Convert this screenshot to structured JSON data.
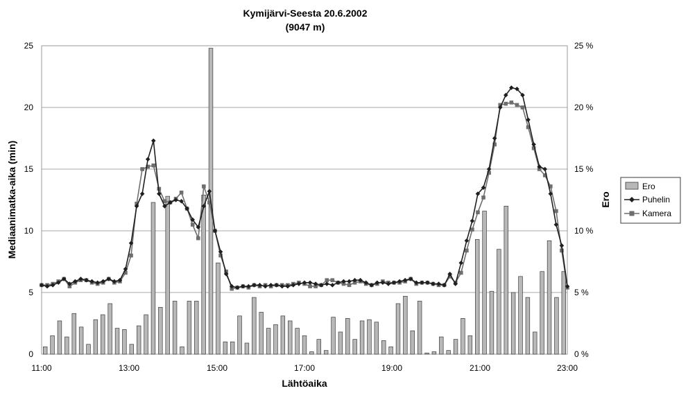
{
  "chart_data": {
    "type": "bar+line",
    "title": "Kymijärvi-Seesta 20.6.2002",
    "subtitle": "(9047 m)",
    "xlabel": "Lähtöaika",
    "ylabel": "Mediaanimatka-aika (min)",
    "y2label": "Ero",
    "x_ticks": [
      "11:00",
      "13:00",
      "15:00",
      "17:00",
      "19:00",
      "21:00",
      "23:00"
    ],
    "y_ticks": [
      "0",
      "5",
      "10",
      "15",
      "20",
      "25"
    ],
    "y2_ticks": [
      "0 %",
      "5 %",
      "10 %",
      "15 %",
      "20 %",
      "25 %"
    ],
    "xlim_hours": [
      11,
      23
    ],
    "ylim": [
      0,
      25
    ],
    "y2lim": [
      0,
      25
    ],
    "grid": "horizontal",
    "legend_position": "right",
    "colors": {
      "bar_fill": "#b8b8b8",
      "bar_stroke": "#3a3a3a",
      "puhelin": "#1f1f1f",
      "kamera": "#6e6e6e",
      "grid": "#8a8a8a"
    },
    "series": [
      {
        "name": "Ero",
        "kind": "bar",
        "axis": "right",
        "unit": "%",
        "values": [
          0.6,
          1.5,
          2.7,
          1.4,
          3.3,
          2.2,
          0.8,
          2.8,
          3.2,
          4.1,
          2.1,
          2.0,
          0.8,
          2.3,
          3.2,
          12.3,
          3.8,
          12.8,
          4.3,
          0.6,
          4.3,
          4.3,
          12.9,
          24.8,
          7.4,
          1.0,
          1.0,
          3.1,
          0.9,
          4.6,
          3.4,
          2.1,
          2.4,
          3.1,
          2.7,
          2.1,
          1.5,
          0.2,
          1.2,
          0.3,
          3.0,
          1.8,
          2.9,
          1.2,
          2.7,
          2.8,
          2.6,
          1.1,
          0.6,
          4.1,
          4.7,
          1.9,
          4.3,
          0.1,
          0.2,
          1.4,
          0.3,
          1.2,
          2.9,
          1.5,
          9.3,
          11.6,
          5.1,
          8.5,
          12.0,
          5.0,
          6.3,
          4.6,
          1.8,
          6.7,
          9.2,
          4.6,
          6.7
        ]
      },
      {
        "name": "Puhelin",
        "kind": "line",
        "marker": "diamond",
        "axis": "left",
        "values": [
          5.6,
          5.5,
          5.6,
          5.8,
          6.1,
          5.7,
          5.9,
          6.1,
          6.0,
          5.9,
          5.8,
          5.9,
          6.1,
          5.9,
          6.0,
          6.9,
          9.0,
          12.0,
          13.0,
          15.8,
          17.3,
          13.0,
          12.0,
          12.3,
          12.5,
          12.4,
          11.8,
          10.9,
          10.3,
          12.0,
          13.2,
          10.0,
          8.3,
          6.5,
          5.5,
          5.4,
          5.5,
          5.5,
          5.6,
          5.6,
          5.5,
          5.6,
          5.6,
          5.5,
          5.5,
          5.6,
          5.7,
          5.8,
          5.8,
          5.7,
          5.6,
          5.7,
          5.6,
          5.8,
          5.9,
          5.9,
          6.0,
          6.0,
          5.8,
          5.6,
          5.8,
          5.8,
          5.7,
          5.8,
          5.9,
          6.0,
          6.1,
          5.8,
          5.8,
          5.8,
          5.7,
          5.7,
          5.6,
          6.5,
          5.7,
          7.4,
          9.2,
          10.8,
          13.0,
          13.5,
          15.0,
          17.5,
          20.0,
          21.0,
          21.6,
          21.5,
          21.0,
          19.0,
          17.0,
          15.2,
          15.0,
          13.0,
          10.5,
          8.8,
          5.5
        ]
      },
      {
        "name": "Kamera",
        "kind": "line",
        "marker": "square",
        "axis": "left",
        "values": [
          5.6,
          5.6,
          5.7,
          5.9,
          6.1,
          5.5,
          5.8,
          6.0,
          6.0,
          5.8,
          5.7,
          5.8,
          6.1,
          5.8,
          5.9,
          6.6,
          8.0,
          12.2,
          15.0,
          15.2,
          15.3,
          13.4,
          12.4,
          12.3,
          12.6,
          13.1,
          11.8,
          10.5,
          9.4,
          13.6,
          12.3,
          10.0,
          8.0,
          6.7,
          5.3,
          5.4,
          5.5,
          5.4,
          5.6,
          5.5,
          5.6,
          5.5,
          5.6,
          5.6,
          5.6,
          5.7,
          5.8,
          5.7,
          5.5,
          5.5,
          5.6,
          6.0,
          6.0,
          5.8,
          5.7,
          5.6,
          5.8,
          5.9,
          5.7,
          5.6,
          5.7,
          5.9,
          5.8,
          5.8,
          5.8,
          5.9,
          6.1,
          5.7,
          5.8,
          5.8,
          5.7,
          5.6,
          5.6,
          6.3,
          5.8,
          6.6,
          8.4,
          10.1,
          11.5,
          12.7,
          14.7,
          17.0,
          20.2,
          20.3,
          20.4,
          20.2,
          20.0,
          18.4,
          16.7,
          15.0,
          14.5,
          13.6,
          11.6,
          8.4,
          5.4
        ]
      }
    ]
  }
}
